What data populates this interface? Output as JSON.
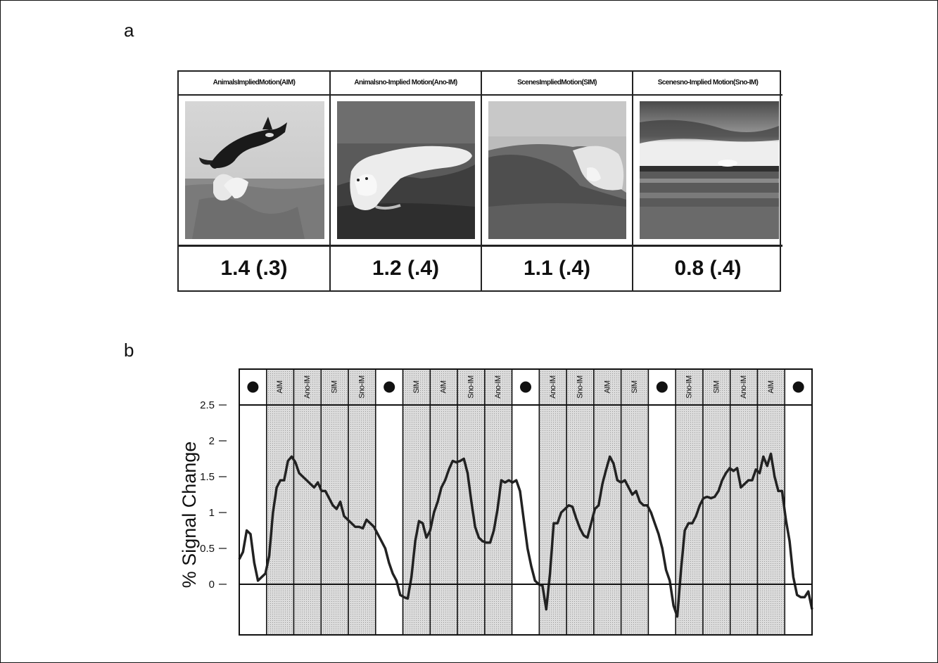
{
  "panels": {
    "a": "a",
    "b": "b"
  },
  "conditions": [
    {
      "header": "AnimalsImpliedMotion(AIM)",
      "value": "1.4 (.3)",
      "image": "orca-leaping"
    },
    {
      "header": "Animalsno-Implied Motion(Ano-IM)",
      "value": "1.2 (.4)",
      "image": "polar-bear-lying"
    },
    {
      "header": "ScenesImpliedMotion(SIM)",
      "value": "1.1 (.4)",
      "image": "breaking-wave"
    },
    {
      "header": "Scenesno-Implied Motion(Sno-IM)",
      "value": "0.8 (.4)",
      "image": "sunset-over-sea"
    }
  ],
  "chart_data": {
    "type": "line",
    "ylabel": "% Signal Change",
    "yticks": [
      "2.5",
      "2",
      "1.5",
      "1",
      "0.5",
      "0"
    ],
    "ylim": [
      -0.55,
      2.5
    ],
    "block_sequence": [
      "fixation",
      "AIM",
      "Ano-IM",
      "SIM",
      "Sno-IM",
      "fixation",
      "SIM",
      "AIM",
      "Sno-IM",
      "Ano-IM",
      "fixation",
      "Ano-IM",
      "Sno-IM",
      "AIM",
      "SIM",
      "fixation",
      "Sno-IM",
      "SIM",
      "Ano-IM",
      "AIM",
      "fixation"
    ],
    "block_widths": [
      1,
      1,
      1,
      1,
      1,
      1,
      1,
      1,
      1,
      1,
      1,
      1,
      1,
      1,
      1,
      1,
      1,
      1,
      1,
      1,
      1
    ],
    "fixation_marker": "filled-circle",
    "series": [
      {
        "values": [
          0.35,
          0.45,
          0.75,
          0.7,
          0.3,
          0.05,
          0.1,
          0.15,
          0.4,
          1.0,
          1.35,
          1.45,
          1.45,
          1.72,
          1.78,
          1.7,
          1.55,
          1.5,
          1.45,
          1.4,
          1.35,
          1.42,
          1.3,
          1.3,
          1.2,
          1.1,
          1.05,
          1.15,
          0.95,
          0.9,
          0.85,
          0.8,
          0.8,
          0.78,
          0.9,
          0.85,
          0.8,
          0.7,
          0.6,
          0.5,
          0.3,
          0.15,
          0.05,
          -0.15,
          -0.18,
          -0.2,
          0.1,
          0.6,
          0.88,
          0.85,
          0.65,
          0.75,
          1.0,
          1.15,
          1.35,
          1.45,
          1.6,
          1.72,
          1.7,
          1.72,
          1.75,
          1.55,
          1.15,
          0.8,
          0.65,
          0.6,
          0.58,
          0.58,
          0.75,
          1.05,
          1.45,
          1.42,
          1.45,
          1.42,
          1.45,
          1.3,
          0.9,
          0.5,
          0.25,
          0.05,
          0.0,
          -0.02,
          -0.35,
          0.15,
          0.85,
          0.85,
          1.0,
          1.05,
          1.1,
          1.08,
          0.92,
          0.78,
          0.68,
          0.65,
          0.85,
          1.05,
          1.1,
          1.4,
          1.6,
          1.78,
          1.68,
          1.45,
          1.42,
          1.45,
          1.35,
          1.25,
          1.3,
          1.15,
          1.1,
          1.1,
          1.0,
          0.85,
          0.7,
          0.5,
          0.2,
          0.05,
          -0.3,
          -0.45,
          0.2,
          0.75,
          0.85,
          0.85,
          0.95,
          1.1,
          1.2,
          1.22,
          1.2,
          1.22,
          1.3,
          1.45,
          1.55,
          1.62,
          1.58,
          1.62,
          1.35,
          1.4,
          1.45,
          1.45,
          1.6,
          1.55,
          1.78,
          1.65,
          1.82,
          1.5,
          1.3,
          1.3,
          0.9,
          0.6,
          0.1,
          -0.15,
          -0.18,
          -0.18,
          -0.1,
          -0.35
        ]
      }
    ]
  }
}
